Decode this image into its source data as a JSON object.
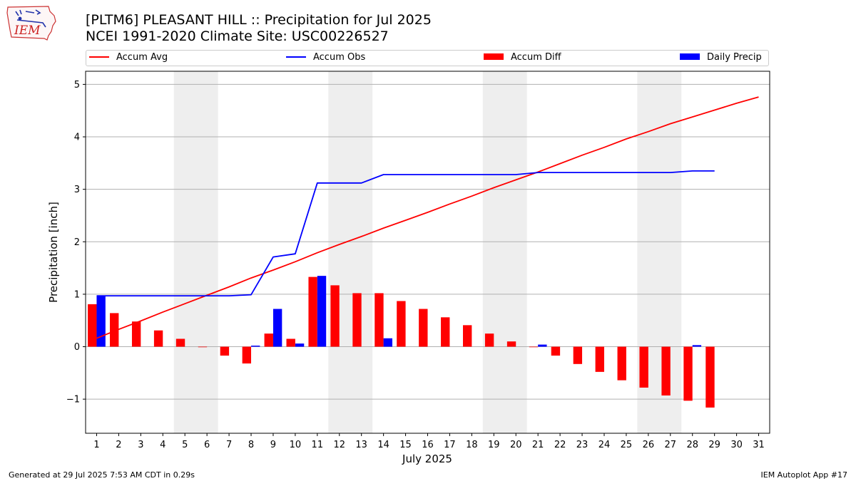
{
  "title": "[PLTM6] PLEASANT HILL :: Precipitation for Jul 2025",
  "subtitle": "NCEI 1991-2020 Climate Site: USC00226527",
  "logo": {
    "text": "IEM",
    "icon": "iowa-state-outline-icon"
  },
  "legend": [
    {
      "name": "Accum Avg",
      "kind": "line",
      "color": "#ff0000"
    },
    {
      "name": "Accum Obs",
      "kind": "line",
      "color": "#0000ff"
    },
    {
      "name": "Accum Diff",
      "kind": "box",
      "color": "#ff0000"
    },
    {
      "name": "Daily Precip",
      "kind": "box",
      "color": "#0000ff"
    }
  ],
  "footer": {
    "left": "Generated at 29 Jul 2025 7:53 AM CDT in 0.29s",
    "right": "IEM Autoplot App #17"
  },
  "chart_data": {
    "type": "bar",
    "xlabel": "July 2025",
    "ylabel": "Precipitation [inch]",
    "xlim": [
      0.5,
      31.5
    ],
    "ylim": [
      -1.65,
      5.25
    ],
    "yticks": [
      -1,
      0,
      1,
      2,
      3,
      4,
      5
    ],
    "ytick_labels": [
      "−1",
      "0",
      "1",
      "2",
      "3",
      "4",
      "5"
    ],
    "days": [
      1,
      2,
      3,
      4,
      5,
      6,
      7,
      8,
      9,
      10,
      11,
      12,
      13,
      14,
      15,
      16,
      17,
      18,
      19,
      20,
      21,
      22,
      23,
      24,
      25,
      26,
      27,
      28,
      29,
      30,
      31
    ],
    "weekend_shading": [
      [
        4.5,
        6.5
      ],
      [
        11.5,
        13.5
      ],
      [
        18.5,
        20.5
      ],
      [
        25.5,
        27.5
      ]
    ],
    "grid": "horizontal",
    "legend_position": "top",
    "series": [
      {
        "name": "Accum Avg",
        "type": "line",
        "color": "#ff0000",
        "x": [
          1,
          2,
          3,
          4,
          5,
          6,
          7,
          8,
          9,
          10,
          11,
          12,
          13,
          14,
          15,
          16,
          17,
          18,
          19,
          20,
          21,
          22,
          23,
          24,
          25,
          26,
          27,
          28,
          29,
          30,
          31
        ],
        "values": [
          0.16,
          0.33,
          0.49,
          0.66,
          0.82,
          0.98,
          1.14,
          1.31,
          1.46,
          1.62,
          1.79,
          1.95,
          2.1,
          2.26,
          2.41,
          2.56,
          2.72,
          2.87,
          3.03,
          3.18,
          3.33,
          3.49,
          3.65,
          3.8,
          3.96,
          4.1,
          4.25,
          4.38,
          4.51,
          4.64,
          4.76
        ]
      },
      {
        "name": "Accum Obs",
        "type": "line",
        "color": "#0000ff",
        "x": [
          1,
          2,
          3,
          4,
          5,
          6,
          7,
          8,
          9,
          10,
          11,
          12,
          13,
          14,
          15,
          16,
          17,
          18,
          19,
          20,
          21,
          22,
          23,
          24,
          25,
          26,
          27,
          28,
          29
        ],
        "values": [
          0.97,
          0.97,
          0.97,
          0.97,
          0.97,
          0.97,
          0.97,
          0.99,
          1.71,
          1.77,
          3.12,
          3.12,
          3.12,
          3.28,
          3.28,
          3.28,
          3.28,
          3.28,
          3.28,
          3.28,
          3.32,
          3.32,
          3.32,
          3.32,
          3.32,
          3.32,
          3.32,
          3.35,
          3.35
        ]
      },
      {
        "name": "Accum Diff",
        "type": "bar",
        "color": "#ff0000",
        "x": [
          1,
          2,
          3,
          4,
          5,
          6,
          7,
          8,
          9,
          10,
          11,
          12,
          13,
          14,
          15,
          16,
          17,
          18,
          19,
          20,
          21,
          22,
          23,
          24,
          25,
          26,
          27,
          28,
          29
        ],
        "values": [
          0.81,
          0.64,
          0.48,
          0.31,
          0.15,
          -0.01,
          -0.17,
          -0.32,
          0.25,
          0.15,
          1.33,
          1.17,
          1.02,
          1.02,
          0.87,
          0.72,
          0.56,
          0.41,
          0.25,
          0.1,
          -0.01,
          -0.17,
          -0.33,
          -0.48,
          -0.64,
          -0.78,
          -0.93,
          -1.03,
          -1.16
        ]
      },
      {
        "name": "Daily Precip",
        "type": "bar",
        "color": "#0000ff",
        "x": [
          1,
          8,
          9,
          10,
          11,
          14,
          21,
          28
        ],
        "values": [
          0.97,
          0.02,
          0.72,
          0.06,
          1.35,
          0.16,
          0.04,
          0.03
        ]
      }
    ]
  }
}
